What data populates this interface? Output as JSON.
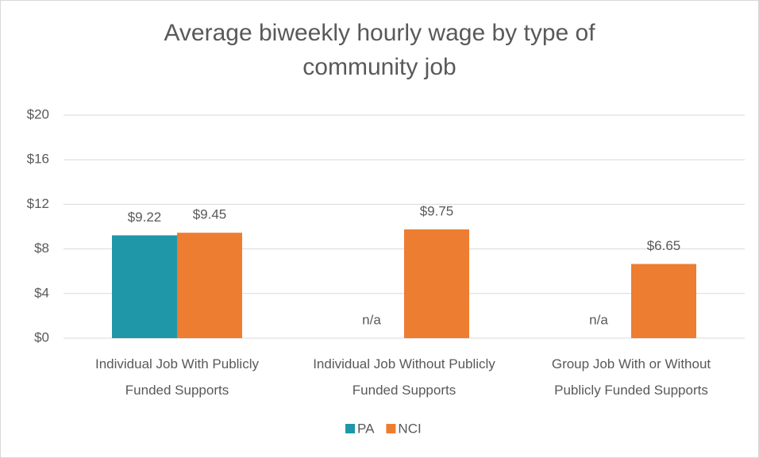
{
  "chart_data": {
    "type": "bar",
    "title": "Average biweekly hourly wage by type of community job",
    "categories": [
      "Individual Job With Publicly Funded Supports",
      "Individual Job Without Publicly Funded Supports",
      "Group Job With or Without Publicly Funded Supports"
    ],
    "series": [
      {
        "name": "PA",
        "color": "#2097a8",
        "values": [
          9.22,
          null,
          null
        ],
        "value_labels": [
          "$9.22",
          "n/a",
          "n/a"
        ]
      },
      {
        "name": "NCI",
        "color": "#ed7d31",
        "values": [
          9.45,
          9.75,
          6.65
        ],
        "value_labels": [
          "$9.45",
          "$9.75",
          "$6.65"
        ]
      }
    ],
    "ylim": [
      0,
      20
    ],
    "yticks": [
      {
        "value": 0,
        "label": "$0"
      },
      {
        "value": 4,
        "label": "$4"
      },
      {
        "value": 8,
        "label": "$8"
      },
      {
        "value": 12,
        "label": "$12"
      },
      {
        "value": 16,
        "label": "$16"
      },
      {
        "value": 20,
        "label": "$20"
      }
    ],
    "grid": true,
    "legend": "bottom"
  }
}
